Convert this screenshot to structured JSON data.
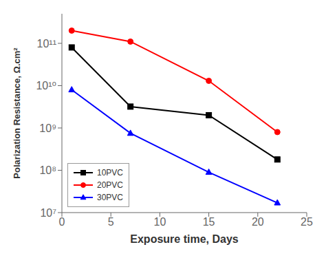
{
  "chart_data": {
    "type": "line",
    "xlabel": "Exposure time, Days",
    "ylabel": "Polarization Resistance, Ω.cm²",
    "x": [
      1,
      7,
      15,
      22
    ],
    "series": [
      {
        "name": "10PVC",
        "color": "#000000",
        "marker": "square",
        "values": [
          80000000000.0,
          3200000000.0,
          2000000000.0,
          180000000.0
        ]
      },
      {
        "name": "20PVC",
        "color": "#ff0000",
        "marker": "circle",
        "values": [
          200000000000.0,
          110000000000.0,
          13000000000.0,
          800000000.0
        ]
      },
      {
        "name": "30PVC",
        "color": "#0000ff",
        "marker": "triangle",
        "values": [
          8000000000.0,
          750000000.0,
          90000000.0,
          17000000.0
        ]
      }
    ],
    "xlim": [
      0,
      25
    ],
    "xticks": [
      0,
      5,
      10,
      15,
      20,
      25
    ],
    "ylim": [
      10000000.0,
      500000000000.0
    ],
    "yticks": [
      {
        "value": 10000000.0,
        "label": "10⁷"
      },
      {
        "value": 100000000.0,
        "label": "10⁸"
      },
      {
        "value": 1000000000.0,
        "label": "10⁹"
      },
      {
        "value": 10000000000.0,
        "label": "10¹⁰"
      },
      {
        "value": 100000000000.0,
        "label": "10¹¹"
      }
    ],
    "log": "y",
    "grid": false,
    "legend": "lower left"
  }
}
